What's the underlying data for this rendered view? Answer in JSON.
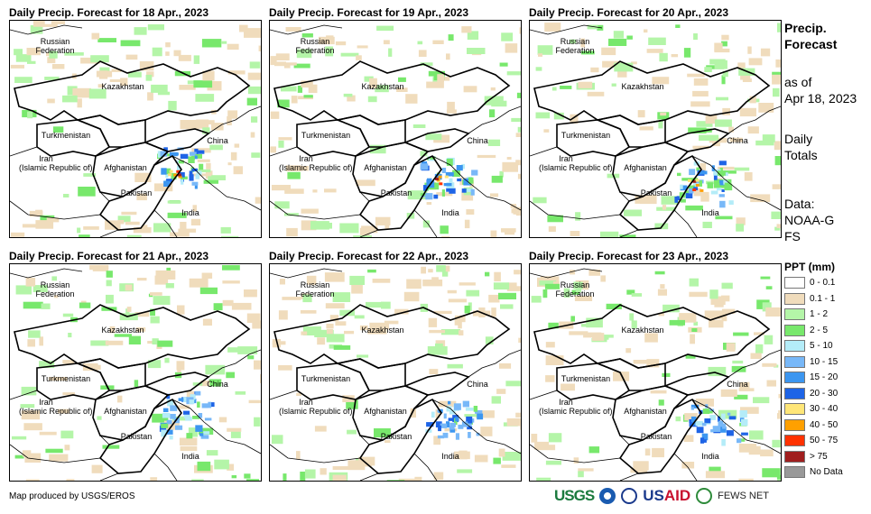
{
  "panels": [
    {
      "title": "Daily Precip. Forecast for 18 Apr., 2023"
    },
    {
      "title": "Daily Precip. Forecast for 19 Apr., 2023"
    },
    {
      "title": "Daily Precip. Forecast for 20 Apr., 2023"
    },
    {
      "title": "Daily Precip. Forecast for 21 Apr., 2023"
    },
    {
      "title": "Daily Precip. Forecast for 22 Apr., 2023"
    },
    {
      "title": "Daily Precip. Forecast for 23 Apr., 2023"
    }
  ],
  "map_labels": {
    "russia": "Russian\nFederation",
    "kazakhstan": "Kazakhstan",
    "turkmenistan": "Turkmenistan",
    "iran": "Iran\n(Islamic Republic of)",
    "afghanistan": "Afghanistan",
    "pakistan": "Pakistan",
    "china": "China",
    "india": "India"
  },
  "side": {
    "title": "Precip. Forecast",
    "as_of_label": "as of",
    "as_of_date": "Apr 18, 2023",
    "totals": "Daily Totals",
    "data_label": "Data:",
    "data_source": "NOAA-GFS"
  },
  "legend": {
    "title": "PPT (mm)",
    "items": [
      {
        "label": "0 - 0.1",
        "color": "#ffffff"
      },
      {
        "label": "0.1 - 1",
        "color": "#f0dcbc"
      },
      {
        "label": "1 - 2",
        "color": "#b4f5a8"
      },
      {
        "label": "2 - 5",
        "color": "#78e86c"
      },
      {
        "label": "5 - 10",
        "color": "#b4ecf8"
      },
      {
        "label": "10 - 15",
        "color": "#78b8f8"
      },
      {
        "label": "15 - 20",
        "color": "#3c96f0"
      },
      {
        "label": "20 - 30",
        "color": "#1e64e6"
      },
      {
        "label": "30 - 40",
        "color": "#ffe678"
      },
      {
        "label": "40 - 50",
        "color": "#ffa000"
      },
      {
        "label": "50 - 75",
        "color": "#ff3200"
      },
      {
        "label": "> 75",
        "color": "#a01e1e"
      },
      {
        "label": "No Data",
        "color": "#999999"
      }
    ]
  },
  "footer": {
    "credit": "Map produced by USGS/EROS",
    "logos": {
      "usgs": "USGS",
      "usaid_us": "US",
      "usaid_aid": "AID",
      "fews": "FEWS NET"
    }
  }
}
